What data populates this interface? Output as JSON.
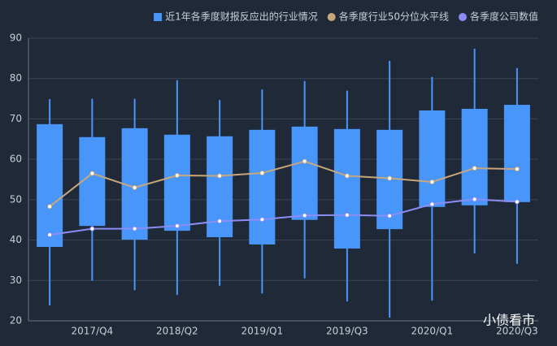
{
  "chart_data": {
    "type": "boxplot",
    "categories": [
      null,
      "2017/Q4",
      null,
      "2018/Q2",
      null,
      "2019/Q1",
      null,
      "2019/Q3",
      null,
      "2020/Q1",
      null,
      "2020/Q3"
    ],
    "box": {
      "name": "近1年各季度财报反应出的行业情况",
      "color": "#4896fa",
      "low": [
        23.8,
        29.9,
        27.6,
        26.4,
        28.7,
        26.8,
        30.5,
        24.8,
        20.8,
        25.0,
        36.7,
        34.1
      ],
      "q1": [
        38.3,
        43.5,
        40.1,
        42.3,
        40.7,
        38.9,
        45.0,
        37.9,
        42.7,
        48.2,
        48.6,
        49.4
      ],
      "q3": [
        68.7,
        65.5,
        67.7,
        66.1,
        65.7,
        67.3,
        68.1,
        67.5,
        67.3,
        72.1,
        72.5,
        73.5
      ],
      "high": [
        74.9,
        75.0,
        75.0,
        79.6,
        74.7,
        77.3,
        79.4,
        77.0,
        84.4,
        80.4,
        87.4,
        82.6
      ]
    },
    "series": [
      {
        "name": "各季度行业50分位水平线",
        "color": "#c8a67c",
        "values": [
          48.3,
          56.5,
          53.0,
          56.0,
          55.9,
          56.6,
          59.5,
          55.9,
          55.3,
          54.4,
          57.8,
          57.6
        ]
      },
      {
        "name": "各季度公司数值",
        "color": "#8b8df5",
        "values": [
          41.3,
          42.8,
          42.8,
          43.5,
          44.7,
          45.1,
          46.1,
          46.2,
          46.0,
          48.9,
          50.1,
          49.5
        ]
      }
    ],
    "ylim": [
      20,
      90
    ],
    "yticks": [
      20,
      30,
      40,
      50,
      60,
      70,
      80,
      90
    ],
    "grid": true,
    "legend": "top-right",
    "watermark": "小债看市"
  }
}
